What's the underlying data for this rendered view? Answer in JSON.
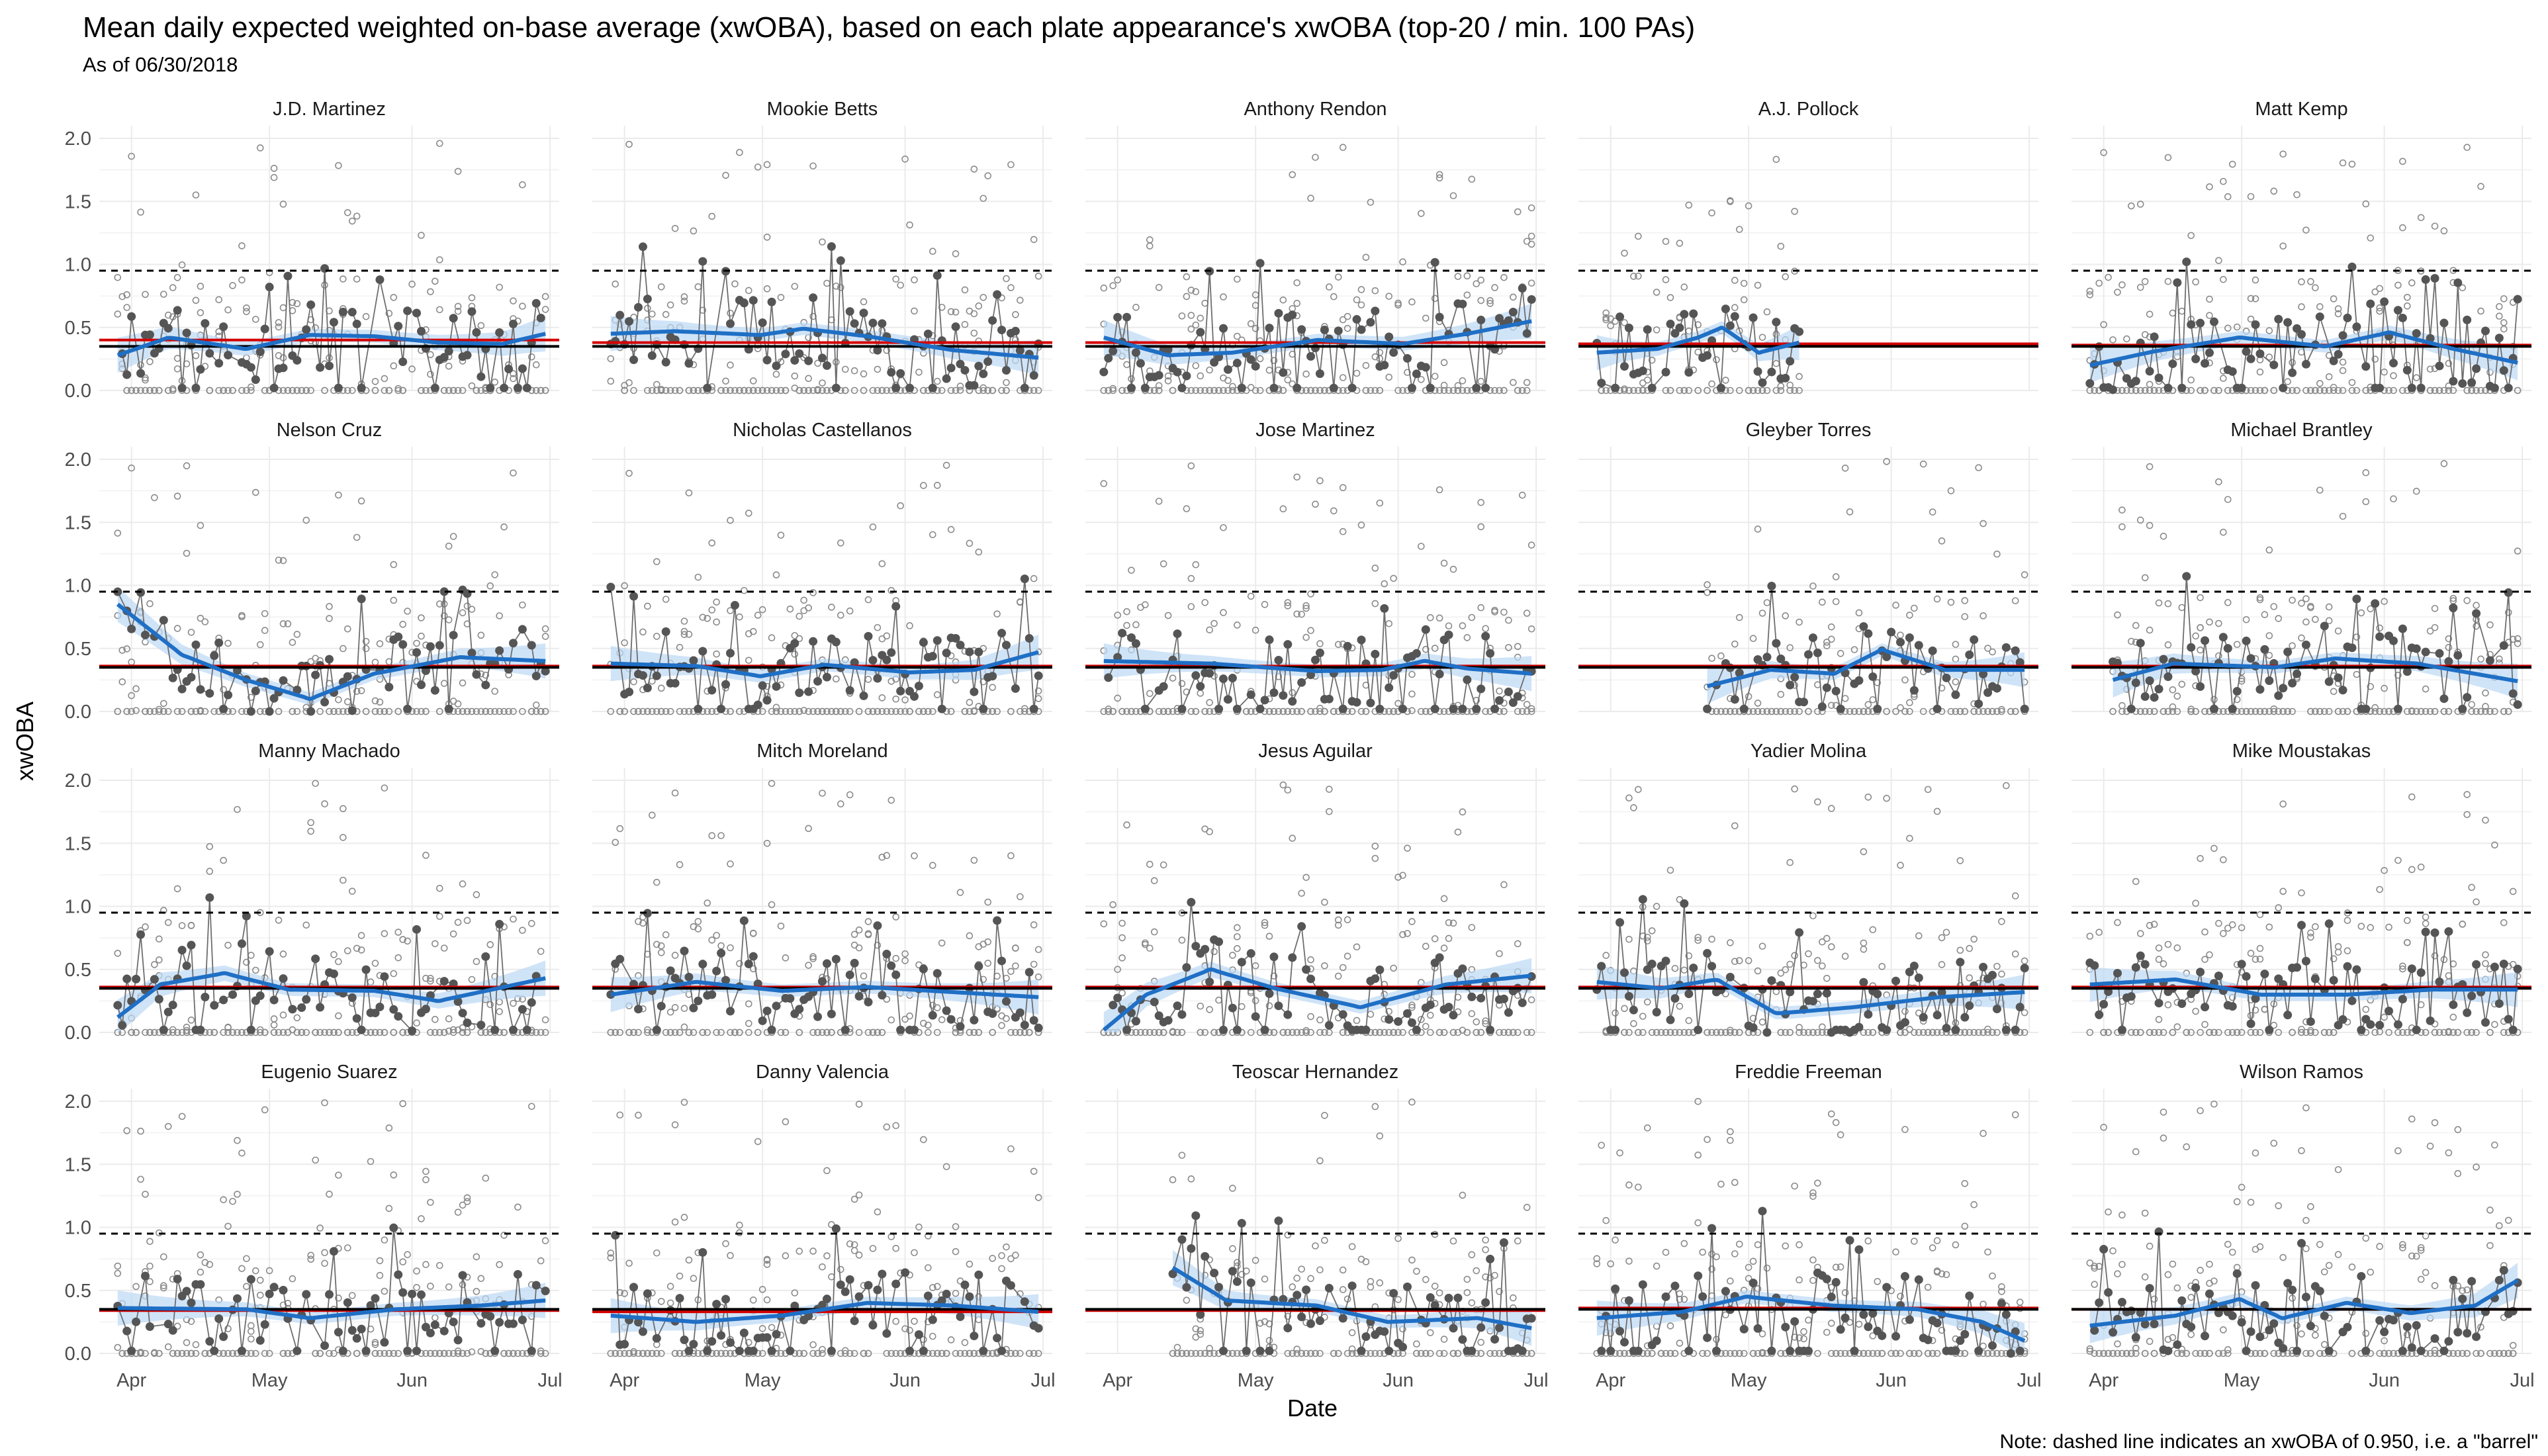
{
  "title": "Mean daily expected weighted on-base average (xwOBA), based on each plate appearance's xwOBA (top-20 / min. 100 PAs)",
  "subtitle": "As of 06/30/2018",
  "note": "Note: dashed line indicates an xwOBA of 0.950, i.e. a \"barrel\"",
  "colors": {
    "smooth": "#1f6fc5",
    "ribbon": "#bcd8f5",
    "league_line": "#000000",
    "player_line": "#d40000",
    "daily_point": "#555555",
    "pa_point": "#8a8a8a",
    "grid": "#ebebeb"
  },
  "chart_data": {
    "type": "scatter",
    "xlabel": "Date",
    "ylabel": "xwOBA",
    "x_range": [
      "2018-03-25",
      "2018-07-03"
    ],
    "x_ticks": [
      {
        "date": "2018-04-01",
        "label": "Apr"
      },
      {
        "date": "2018-05-01",
        "label": "May"
      },
      {
        "date": "2018-06-01",
        "label": "Jun"
      },
      {
        "date": "2018-07-01",
        "label": "Jul"
      }
    ],
    "ylim": [
      0,
      2.1
    ],
    "y_ticks": [
      "0.0",
      "0.5",
      "1.0",
      "1.5",
      "2.0"
    ],
    "barrel_line": 0.95,
    "league_mean": 0.35,
    "grid": true,
    "layout": "4 rows x 5 facets",
    "series": [
      {
        "name": "J.D. Martinez",
        "player_mean": 0.4,
        "start": "2018-03-29",
        "end": "2018-06-30",
        "smooth": [
          [
            0,
            0.28
          ],
          [
            0.12,
            0.42
          ],
          [
            0.3,
            0.33
          ],
          [
            0.45,
            0.44
          ],
          [
            0.6,
            0.43
          ],
          [
            0.75,
            0.38
          ],
          [
            0.9,
            0.37
          ],
          [
            1,
            0.45
          ]
        ]
      },
      {
        "name": "Mookie Betts",
        "player_mean": 0.38,
        "start": "2018-03-29",
        "end": "2018-06-30",
        "smooth": [
          [
            0,
            0.45
          ],
          [
            0.15,
            0.47
          ],
          [
            0.35,
            0.44
          ],
          [
            0.45,
            0.49
          ],
          [
            0.6,
            0.43
          ],
          [
            0.8,
            0.32
          ],
          [
            1,
            0.26
          ]
        ]
      },
      {
        "name": "Anthony Rendon",
        "player_mean": 0.38,
        "start": "2018-03-29",
        "end": "2018-06-30",
        "smooth": [
          [
            0,
            0.42
          ],
          [
            0.15,
            0.28
          ],
          [
            0.3,
            0.3
          ],
          [
            0.5,
            0.4
          ],
          [
            0.7,
            0.37
          ],
          [
            0.85,
            0.45
          ],
          [
            1,
            0.55
          ]
        ]
      },
      {
        "name": "A.J. Pollock",
        "player_mean": 0.37,
        "start": "2018-03-29",
        "end": "2018-05-12",
        "smooth": [
          [
            0,
            0.3
          ],
          [
            0.3,
            0.33
          ],
          [
            0.5,
            0.42
          ],
          [
            0.62,
            0.5
          ],
          [
            0.8,
            0.3
          ],
          [
            1,
            0.38
          ]
        ]
      },
      {
        "name": "Matt Kemp",
        "player_mean": 0.36,
        "start": "2018-03-29",
        "end": "2018-06-30",
        "smooth": [
          [
            0,
            0.2
          ],
          [
            0.15,
            0.31
          ],
          [
            0.35,
            0.42
          ],
          [
            0.55,
            0.35
          ],
          [
            0.7,
            0.46
          ],
          [
            0.85,
            0.33
          ],
          [
            1,
            0.22
          ]
        ]
      },
      {
        "name": "Nelson Cruz",
        "player_mean": 0.36,
        "start": "2018-03-29",
        "end": "2018-06-30",
        "smooth": [
          [
            0,
            0.85
          ],
          [
            0.15,
            0.45
          ],
          [
            0.3,
            0.25
          ],
          [
            0.45,
            0.1
          ],
          [
            0.6,
            0.3
          ],
          [
            0.8,
            0.43
          ],
          [
            1,
            0.4
          ]
        ]
      },
      {
        "name": "Nicholas Castellanos",
        "player_mean": 0.36,
        "start": "2018-03-29",
        "end": "2018-06-30",
        "smooth": [
          [
            0,
            0.38
          ],
          [
            0.2,
            0.36
          ],
          [
            0.35,
            0.28
          ],
          [
            0.5,
            0.37
          ],
          [
            0.7,
            0.31
          ],
          [
            0.85,
            0.33
          ],
          [
            1,
            0.47
          ]
        ]
      },
      {
        "name": "Jose Martinez",
        "player_mean": 0.36,
        "start": "2018-03-29",
        "end": "2018-06-30",
        "smooth": [
          [
            0,
            0.4
          ],
          [
            0.25,
            0.38
          ],
          [
            0.5,
            0.32
          ],
          [
            0.65,
            0.33
          ],
          [
            0.75,
            0.4
          ],
          [
            0.85,
            0.34
          ],
          [
            1,
            0.3
          ]
        ]
      },
      {
        "name": "Gleyber Torres",
        "player_mean": 0.36,
        "start": "2018-04-22",
        "end": "2018-06-30",
        "smooth": [
          [
            0,
            0.2
          ],
          [
            0.2,
            0.33
          ],
          [
            0.4,
            0.3
          ],
          [
            0.55,
            0.49
          ],
          [
            0.75,
            0.33
          ],
          [
            1,
            0.33
          ]
        ]
      },
      {
        "name": "Michael Brantley",
        "player_mean": 0.36,
        "start": "2018-04-03",
        "end": "2018-06-30",
        "smooth": [
          [
            0,
            0.25
          ],
          [
            0.15,
            0.38
          ],
          [
            0.4,
            0.35
          ],
          [
            0.55,
            0.42
          ],
          [
            0.75,
            0.38
          ],
          [
            1,
            0.24
          ]
        ]
      },
      {
        "name": "Manny Machado",
        "player_mean": 0.36,
        "start": "2018-03-29",
        "end": "2018-06-30",
        "smooth": [
          [
            0,
            0.12
          ],
          [
            0.1,
            0.38
          ],
          [
            0.25,
            0.47
          ],
          [
            0.4,
            0.34
          ],
          [
            0.6,
            0.33
          ],
          [
            0.75,
            0.25
          ],
          [
            1,
            0.43
          ]
        ]
      },
      {
        "name": "Mitch Moreland",
        "player_mean": 0.36,
        "start": "2018-03-29",
        "end": "2018-06-30",
        "smooth": [
          [
            0,
            0.3
          ],
          [
            0.2,
            0.4
          ],
          [
            0.4,
            0.33
          ],
          [
            0.6,
            0.36
          ],
          [
            0.8,
            0.32
          ],
          [
            1,
            0.28
          ]
        ]
      },
      {
        "name": "Jesus Aguilar",
        "player_mean": 0.36,
        "start": "2018-03-29",
        "end": "2018-06-30",
        "smooth": [
          [
            0,
            0.02
          ],
          [
            0.1,
            0.3
          ],
          [
            0.25,
            0.5
          ],
          [
            0.4,
            0.35
          ],
          [
            0.6,
            0.2
          ],
          [
            0.8,
            0.38
          ],
          [
            1,
            0.45
          ]
        ]
      },
      {
        "name": "Yadier Molina",
        "player_mean": 0.36,
        "start": "2018-03-29",
        "end": "2018-06-30",
        "smooth": [
          [
            0,
            0.4
          ],
          [
            0.15,
            0.35
          ],
          [
            0.28,
            0.42
          ],
          [
            0.42,
            0.15
          ],
          [
            0.6,
            0.2
          ],
          [
            0.8,
            0.28
          ],
          [
            1,
            0.32
          ]
        ]
      },
      {
        "name": "Mike Moustakas",
        "player_mean": 0.36,
        "start": "2018-03-29",
        "end": "2018-06-30",
        "smooth": [
          [
            0,
            0.38
          ],
          [
            0.2,
            0.42
          ],
          [
            0.4,
            0.3
          ],
          [
            0.6,
            0.3
          ],
          [
            0.8,
            0.34
          ],
          [
            1,
            0.34
          ]
        ]
      },
      {
        "name": "Eugenio Suarez",
        "player_mean": 0.34,
        "start": "2018-03-29",
        "end": "2018-06-30",
        "smooth": [
          [
            0,
            0.36
          ],
          [
            0.3,
            0.35
          ],
          [
            0.45,
            0.28
          ],
          [
            0.65,
            0.35
          ],
          [
            0.85,
            0.38
          ],
          [
            1,
            0.42
          ]
        ]
      },
      {
        "name": "Danny Valencia",
        "player_mean": 0.33,
        "start": "2018-03-29",
        "end": "2018-06-30",
        "smooth": [
          [
            0,
            0.3
          ],
          [
            0.2,
            0.25
          ],
          [
            0.4,
            0.3
          ],
          [
            0.6,
            0.4
          ],
          [
            0.8,
            0.38
          ],
          [
            1,
            0.33
          ]
        ]
      },
      {
        "name": "Teoscar Hernandez",
        "player_mean": 0.34,
        "start": "2018-04-13",
        "end": "2018-06-30",
        "smooth": [
          [
            0,
            0.68
          ],
          [
            0.15,
            0.42
          ],
          [
            0.4,
            0.38
          ],
          [
            0.6,
            0.25
          ],
          [
            0.85,
            0.28
          ],
          [
            1,
            0.2
          ]
        ]
      },
      {
        "name": "Freddie Freeman",
        "player_mean": 0.36,
        "start": "2018-03-29",
        "end": "2018-06-30",
        "smooth": [
          [
            0,
            0.28
          ],
          [
            0.2,
            0.33
          ],
          [
            0.35,
            0.45
          ],
          [
            0.55,
            0.38
          ],
          [
            0.75,
            0.35
          ],
          [
            0.9,
            0.25
          ],
          [
            1,
            0.1
          ]
        ]
      },
      {
        "name": "Wilson Ramos",
        "player_mean": 0.35,
        "start": "2018-03-29",
        "end": "2018-06-30",
        "smooth": [
          [
            0,
            0.22
          ],
          [
            0.2,
            0.3
          ],
          [
            0.35,
            0.43
          ],
          [
            0.45,
            0.28
          ],
          [
            0.6,
            0.4
          ],
          [
            0.75,
            0.32
          ],
          [
            0.9,
            0.38
          ],
          [
            1,
            0.58
          ]
        ]
      }
    ]
  }
}
